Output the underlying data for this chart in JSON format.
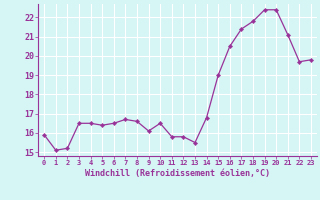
{
  "x": [
    0,
    1,
    2,
    3,
    4,
    5,
    6,
    7,
    8,
    9,
    10,
    11,
    12,
    13,
    14,
    15,
    16,
    17,
    18,
    19,
    20,
    21,
    22,
    23
  ],
  "y": [
    15.9,
    15.1,
    15.2,
    16.5,
    16.5,
    16.4,
    16.5,
    16.7,
    16.6,
    16.1,
    16.5,
    15.8,
    15.8,
    15.5,
    16.8,
    19.0,
    20.5,
    21.4,
    21.8,
    22.4,
    22.4,
    21.1,
    19.7,
    19.8
  ],
  "line_color": "#993399",
  "marker_color": "#993399",
  "bg_color": "#d6f5f5",
  "grid_color": "#ffffff",
  "xlabel": "Windchill (Refroidissement éolien,°C)",
  "xlabel_color": "#993399",
  "tick_color": "#993399",
  "ylim": [
    14.8,
    22.7
  ],
  "yticks": [
    15,
    16,
    17,
    18,
    19,
    20,
    21,
    22
  ],
  "xtick_labels": [
    "0",
    "1",
    "2",
    "3",
    "4",
    "5",
    "6",
    "7",
    "8",
    "9",
    "10",
    "11",
    "12",
    "13",
    "14",
    "15",
    "16",
    "17",
    "18",
    "19",
    "20",
    "21",
    "22",
    "23"
  ]
}
